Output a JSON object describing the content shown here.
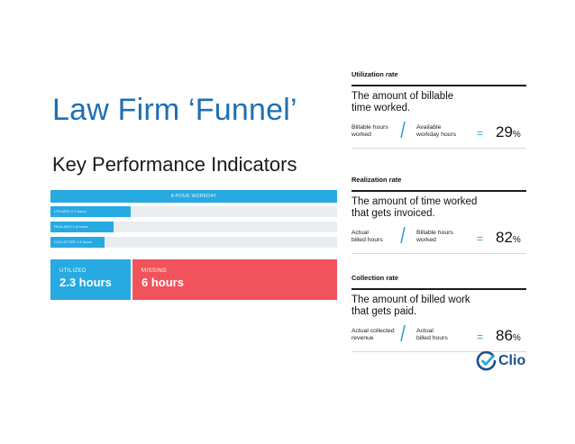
{
  "slide": {
    "title": "Law Firm ‘Funnel’",
    "subtitle": "Key Performance Indicators"
  },
  "funnel": {
    "top_label": "8-HOUR WORKDAY",
    "rows": [
      {
        "label": "UTILIZED 2.3 hours",
        "fraction": 0.28
      },
      {
        "label": "REALIZED 1.8 hours",
        "fraction": 0.22
      },
      {
        "label": "COLLECTED 1.6 hours",
        "fraction": 0.19
      }
    ],
    "utilized_caption": "UTILIZED",
    "utilized_value": "2.3 hours",
    "missing_caption": "MISSING",
    "missing_value": "6 hours",
    "colors": {
      "blue": "#27a9e1",
      "red": "#f1535c",
      "track": "#e9edf0"
    }
  },
  "kpis": [
    {
      "label": "Utilization rate",
      "headline_1": "The amount of billable",
      "headline_2": "time worked.",
      "numerator_1": "Billable hours",
      "numerator_2": "worked",
      "denominator_1": "Available",
      "denominator_2": "workday hours",
      "equals": "=",
      "value": "29",
      "unit": "%"
    },
    {
      "label": "Realization rate",
      "headline_1": "The amount of time worked",
      "headline_2": "that gets invoiced.",
      "numerator_1": "Actual",
      "numerator_2": "billed hours",
      "denominator_1": "Billable hours",
      "denominator_2": "worked",
      "equals": "=",
      "value": "82",
      "unit": "%"
    },
    {
      "label": "Collection rate",
      "headline_1": "The amount of billed work",
      "headline_2": "that gets paid.",
      "numerator_1": "Actual collected",
      "numerator_2": "revenue",
      "denominator_1": "Actual",
      "denominator_2": "billed hours",
      "equals": "=",
      "value": "86",
      "unit": "%"
    }
  ],
  "logo": {
    "text": "Clio",
    "color": "#1a4f8b",
    "accent": "#2aa3d6"
  }
}
